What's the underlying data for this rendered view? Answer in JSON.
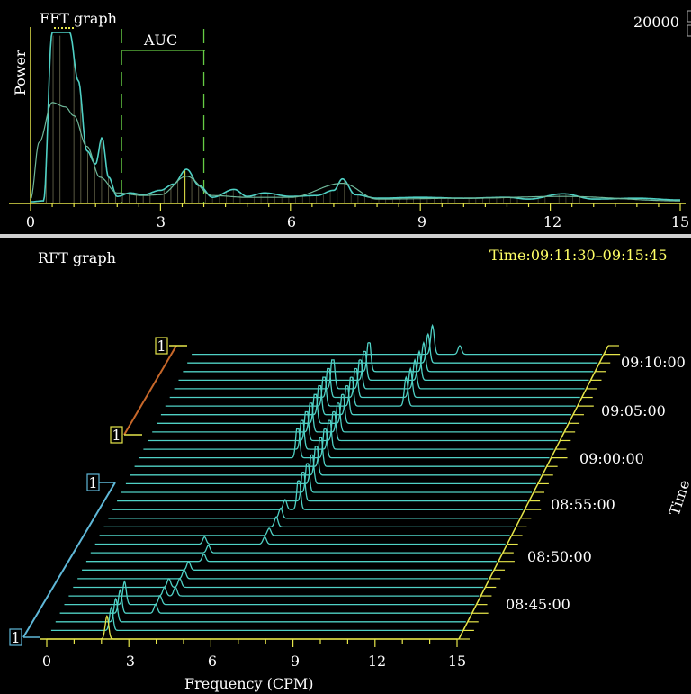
{
  "colors": {
    "background": "#000000",
    "trace": "#4fd1c5",
    "trace_light": "#9fe8e0",
    "axis_yellow": "#e6e64a",
    "auc_green": "#66cc44",
    "separator": "#cfcfcf",
    "marker_orange": "#c8682a",
    "marker_blue": "#5fb8d8",
    "text": "#ffffff",
    "time_text": "#ffff66"
  },
  "fft": {
    "title": "FFT graph",
    "ylabel": "Power",
    "max_label": "20000",
    "auc_label": "AUC",
    "x_ticks": [
      "0",
      "3",
      "6",
      "9",
      "12",
      "15"
    ]
  },
  "rft": {
    "title": "RFT graph",
    "time_range": "Time:09:11:30–09:15:45",
    "time_axis_label": "Time",
    "xlabel": "Frequency (CPM)",
    "x_ticks": [
      "0",
      "3",
      "6",
      "9",
      "12",
      "15"
    ],
    "time_ticks": [
      "08:45:00",
      "08:50:00",
      "08:55:00",
      "09:00:00",
      "09:05:00",
      "09:10:00"
    ],
    "markers": [
      "1",
      "1",
      "1",
      "1"
    ]
  },
  "chart_data": [
    {
      "type": "line",
      "title": "FFT graph",
      "ylabel": "Power",
      "xlim": [
        0,
        15
      ],
      "x_ticks": [
        0,
        3,
        6,
        9,
        12,
        15
      ],
      "y_max_label": 20000,
      "auc_range_cpm": [
        2.1,
        4.0
      ],
      "series": [
        {
          "x": [
            0,
            0.3,
            0.5,
            0.7,
            0.9,
            1.1,
            1.3,
            1.5,
            1.65,
            1.8,
            2.0,
            2.3,
            2.6,
            3.0,
            3.3,
            3.6,
            3.9,
            4.2,
            4.7,
            5.0,
            5.4,
            6.0,
            6.6,
            7.0,
            7.2,
            7.5,
            8.0,
            9.0,
            10.0,
            11.0,
            11.5,
            12.3,
            13.0,
            14.0,
            15.0
          ],
          "values": [
            200,
            300,
            19500,
            19500,
            19500,
            14000,
            6000,
            4500,
            7500,
            3000,
            800,
            1200,
            1000,
            1500,
            2200,
            3900,
            2000,
            700,
            1600,
            800,
            1200,
            800,
            900,
            1500,
            2800,
            1000,
            600,
            700,
            600,
            700,
            500,
            1100,
            500,
            600,
            400
          ]
        },
        {
          "x": [
            0,
            0.2,
            0.5,
            0.8,
            1.0,
            1.3,
            1.6,
            2.0,
            2.6,
            3.0,
            3.6,
            4.2,
            5.0,
            6.0,
            7.2,
            8.0,
            10.0,
            12.3,
            15.0
          ],
          "values": [
            500,
            7000,
            11500,
            11000,
            10000,
            6500,
            3000,
            1200,
            900,
            1000,
            3100,
            900,
            700,
            700,
            2300,
            500,
            600,
            800,
            300
          ]
        }
      ]
    },
    {
      "type": "line",
      "title": "RFT graph",
      "xlabel": "Frequency (CPM)",
      "xlim": [
        0,
        15
      ],
      "x_ticks": [
        0,
        3,
        6,
        9,
        12,
        15
      ],
      "time_range": "09:11:30–09:15:45",
      "time_ticks": [
        "08:45:00",
        "08:50:00",
        "08:55:00",
        "09:00:00",
        "09:05:00",
        "09:10:00"
      ],
      "traces": 34,
      "peaks": [
        {
          "cpm": 2.2,
          "traces": [
            0,
            4
          ],
          "level": 0.8
        },
        {
          "cpm": 3.5,
          "traces": [
            3,
            6
          ],
          "level": 0.3
        },
        {
          "cpm": 3.9,
          "traces": [
            5,
            8
          ],
          "level": 0.3
        },
        {
          "cpm": 4.3,
          "traces": [
            9,
            10
          ],
          "level": 0.25
        },
        {
          "cpm": 4.0,
          "traces": [
            11,
            11
          ],
          "level": 0.25
        },
        {
          "cpm": 6.2,
          "traces": [
            11,
            12
          ],
          "level": 0.25
        },
        {
          "cpm": 6.3,
          "traces": [
            13,
            15
          ],
          "level": 0.35
        },
        {
          "cpm": 6.8,
          "traces": [
            15,
            31
          ],
          "level": 1.2
        },
        {
          "cpm": 5.8,
          "traces": [
            21,
            29
          ],
          "level": 1.3
        },
        {
          "cpm": 8.8,
          "traces": [
            27,
            33
          ],
          "level": 1.0
        },
        {
          "cpm": 9.8,
          "traces": [
            33,
            34
          ],
          "level": 0.3
        }
      ]
    }
  ]
}
